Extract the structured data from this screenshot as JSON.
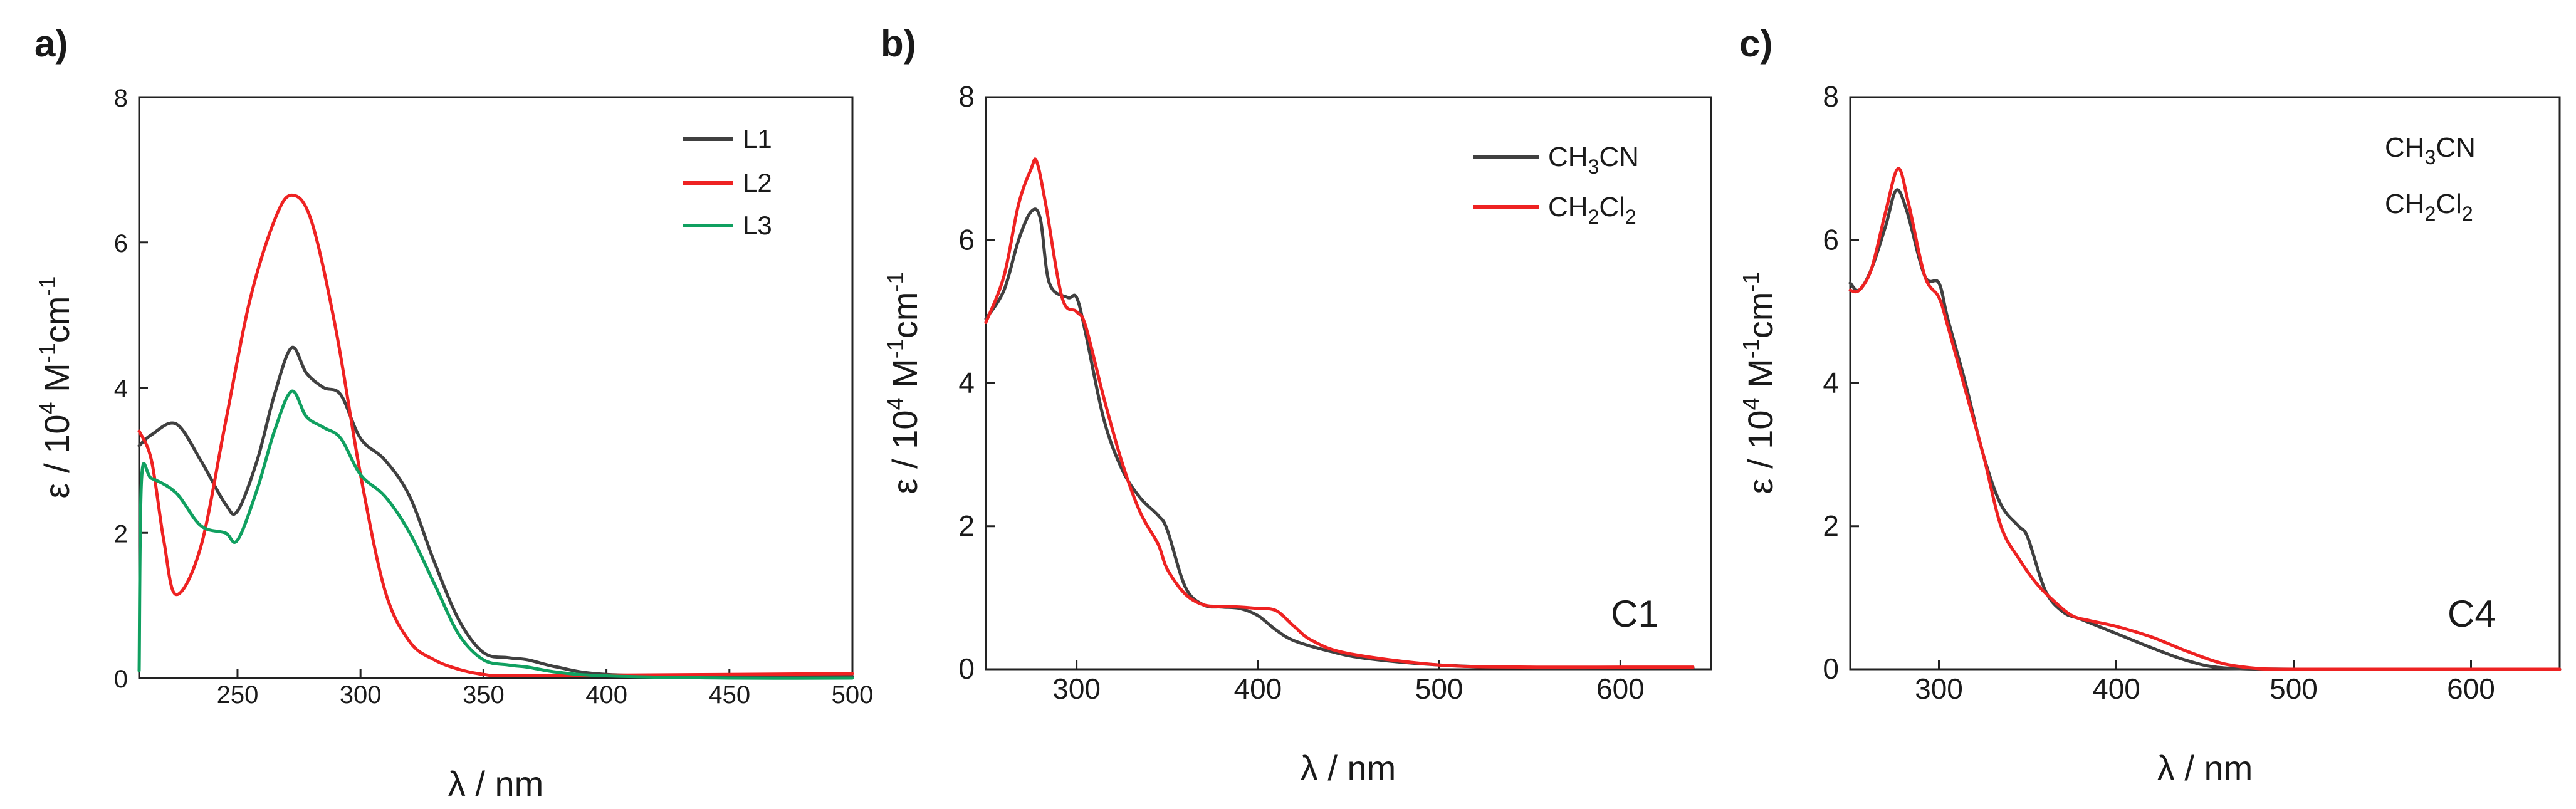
{
  "figure": {
    "panels": [
      "a)",
      "b)",
      "c)"
    ]
  },
  "chart_data": [
    {
      "type": "line",
      "panel": "a)",
      "title": "",
      "xlabel": "λ / nm",
      "ylabel": "ε / 10^4 M^-1cm^-1",
      "ylabel_parts": {
        "base": "ε / 10",
        "exp1": "4",
        "mid": " M",
        "exp2": "-1",
        "mid2": "cm",
        "exp3": "-1"
      },
      "xlim": [
        210,
        500
      ],
      "ylim": [
        0,
        8
      ],
      "xticks": [
        250,
        300,
        350,
        400,
        450,
        500
      ],
      "xtick_labels": [
        "250",
        "300",
        "350",
        "400",
        "450",
        "500"
      ],
      "yticks": [
        0,
        2,
        4,
        6,
        8
      ],
      "ytick_labels": [
        "0",
        "2",
        "4",
        "6",
        "8"
      ],
      "legend_position": "top-right",
      "series": [
        {
          "name": "L1",
          "color": "#404040",
          "x": [
            210,
            215,
            225,
            235,
            245,
            250,
            258,
            265,
            272,
            278,
            285,
            292,
            300,
            310,
            320,
            330,
            340,
            350,
            360,
            368,
            380,
            400,
            450,
            500
          ],
          "y": [
            3.2,
            3.35,
            3.5,
            3.0,
            2.4,
            2.3,
            3.0,
            3.9,
            4.55,
            4.2,
            4.0,
            3.9,
            3.3,
            3.0,
            2.5,
            1.6,
            0.8,
            0.35,
            0.28,
            0.25,
            0.15,
            0.05,
            0.02,
            0.02
          ]
        },
        {
          "name": "L2",
          "color": "#ee2222",
          "x": [
            210,
            215,
            220,
            225,
            235,
            245,
            255,
            265,
            272,
            280,
            290,
            300,
            310,
            320,
            330,
            340,
            350,
            360,
            400,
            450,
            500
          ],
          "y": [
            3.4,
            3.0,
            1.9,
            1.15,
            1.8,
            3.5,
            5.2,
            6.3,
            6.65,
            6.3,
            4.8,
            2.8,
            1.2,
            0.5,
            0.25,
            0.12,
            0.05,
            0.03,
            0.04,
            0.05,
            0.06
          ]
        },
        {
          "name": "L3",
          "color": "#10a060",
          "x": [
            210,
            211,
            215,
            225,
            235,
            245,
            250,
            258,
            265,
            272,
            278,
            285,
            292,
            300,
            310,
            320,
            330,
            340,
            350,
            360,
            368,
            380,
            400,
            450,
            500
          ],
          "y": [
            0.1,
            2.75,
            2.75,
            2.55,
            2.1,
            2.0,
            1.9,
            2.6,
            3.4,
            3.95,
            3.6,
            3.45,
            3.3,
            2.8,
            2.5,
            2.0,
            1.3,
            0.6,
            0.25,
            0.18,
            0.15,
            0.08,
            0.03,
            0.0,
            0.0
          ]
        }
      ]
    },
    {
      "type": "line",
      "panel": "b)",
      "title": "",
      "xlabel": "λ / nm",
      "ylabel": "ε / 10^4 M^-1cm^-1",
      "ylabel_parts": {
        "base": "ε / 10",
        "exp1": "4",
        "mid": " M",
        "exp2": "-1",
        "mid2": "cm",
        "exp3": "-1"
      },
      "xlim": [
        250,
        650
      ],
      "ylim": [
        0,
        8
      ],
      "xticks": [
        300,
        400,
        500,
        600
      ],
      "xtick_labels": [
        "300",
        "400",
        "500",
        "600"
      ],
      "yticks": [
        0,
        2,
        4,
        6,
        8
      ],
      "ytick_labels": [
        "0",
        "2",
        "4",
        "6",
        "8"
      ],
      "legend_position": "top-right",
      "sample_label": "C1",
      "series": [
        {
          "name": "CH3CN",
          "label_parts": [
            "CH",
            "3",
            "CN",
            ""
          ],
          "color": "#404040",
          "x": [
            250,
            260,
            268,
            275,
            280,
            285,
            295,
            300,
            305,
            315,
            325,
            335,
            345,
            350,
            360,
            370,
            380,
            390,
            400,
            410,
            420,
            440,
            460,
            500,
            550,
            600,
            640
          ],
          "y": [
            4.9,
            5.3,
            6.0,
            6.4,
            6.3,
            5.4,
            5.2,
            5.2,
            4.7,
            3.5,
            2.8,
            2.4,
            2.15,
            1.95,
            1.15,
            0.9,
            0.87,
            0.85,
            0.75,
            0.55,
            0.4,
            0.25,
            0.15,
            0.06,
            0.02,
            0.02,
            0.02
          ]
        },
        {
          "name": "CH2Cl2",
          "label_parts": [
            "CH",
            "2",
            "Cl",
            "2"
          ],
          "color": "#ee2222",
          "x": [
            250,
            260,
            268,
            275,
            278,
            283,
            292,
            300,
            305,
            315,
            325,
            335,
            345,
            350,
            360,
            370,
            380,
            390,
            400,
            410,
            420,
            430,
            450,
            500,
            550,
            600,
            640
          ],
          "y": [
            4.85,
            5.5,
            6.5,
            7.0,
            7.1,
            6.5,
            5.2,
            5.0,
            4.8,
            3.8,
            2.9,
            2.2,
            1.75,
            1.4,
            1.05,
            0.9,
            0.88,
            0.87,
            0.85,
            0.82,
            0.6,
            0.4,
            0.22,
            0.06,
            0.03,
            0.03,
            0.03
          ]
        }
      ]
    },
    {
      "type": "line",
      "panel": "c)",
      "title": "",
      "xlabel": "λ / nm",
      "ylabel": "ε / 10^4 M^-1cm^-1",
      "ylabel_parts": {
        "base": "ε / 10",
        "exp1": "4",
        "mid": " M",
        "exp2": "-1",
        "mid2": "cm",
        "exp3": "-1"
      },
      "xlim": [
        250,
        650
      ],
      "ylim": [
        0,
        8
      ],
      "xticks": [
        300,
        400,
        500,
        600
      ],
      "xtick_labels": [
        "300",
        "400",
        "500",
        "600"
      ],
      "yticks": [
        0,
        2,
        4,
        6,
        8
      ],
      "ytick_labels": [
        "0",
        "2",
        "4",
        "6",
        "8"
      ],
      "legend_position": "top-right",
      "legend_lines_visible": false,
      "sample_label": "C4",
      "series": [
        {
          "name": "CH3CN",
          "label_parts": [
            "CH",
            "3",
            "CN",
            ""
          ],
          "color": "#404040",
          "x": [
            250,
            255,
            262,
            270,
            276,
            282,
            292,
            300,
            305,
            315,
            325,
            335,
            345,
            350,
            360,
            370,
            380,
            400,
            420,
            440,
            460,
            500,
            550,
            600,
            650
          ],
          "y": [
            5.4,
            5.3,
            5.6,
            6.2,
            6.7,
            6.4,
            5.5,
            5.4,
            4.9,
            4.0,
            3.0,
            2.3,
            2.0,
            1.85,
            1.1,
            0.8,
            0.7,
            0.5,
            0.3,
            0.12,
            0.02,
            0.0,
            0.0,
            0.0,
            0.0
          ]
        },
        {
          "name": "CH2Cl2",
          "label_parts": [
            "CH",
            "2",
            "Cl",
            "2"
          ],
          "color": "#ee2222",
          "x": [
            250,
            255,
            262,
            270,
            277,
            283,
            292,
            300,
            305,
            315,
            325,
            335,
            345,
            355,
            365,
            375,
            385,
            400,
            420,
            440,
            460,
            480,
            500,
            550,
            600,
            650
          ],
          "y": [
            5.3,
            5.3,
            5.6,
            6.4,
            7.0,
            6.5,
            5.5,
            5.2,
            4.8,
            3.9,
            3.0,
            2.0,
            1.55,
            1.2,
            0.95,
            0.75,
            0.68,
            0.6,
            0.45,
            0.25,
            0.08,
            0.01,
            0.0,
            0.0,
            0.0,
            0.0
          ]
        }
      ]
    }
  ]
}
